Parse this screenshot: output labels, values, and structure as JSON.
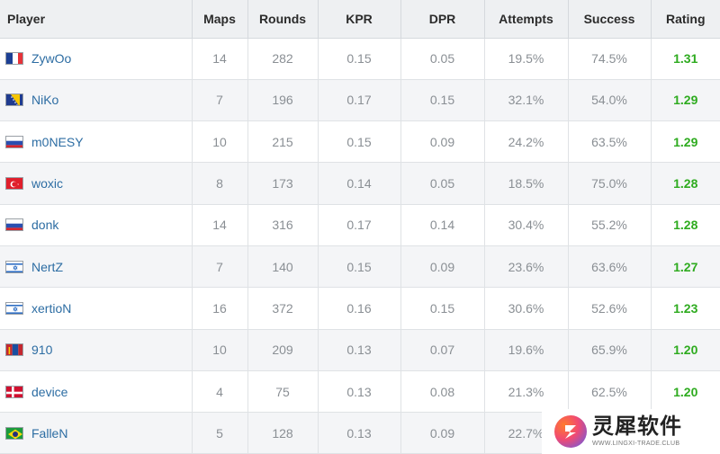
{
  "headers": [
    "Player",
    "Maps",
    "Rounds",
    "KPR",
    "DPR",
    "Attempts",
    "Success",
    "Rating"
  ],
  "rows": [
    {
      "flag": "france",
      "player": "ZywOo",
      "maps": "14",
      "rounds": "282",
      "kpr": "0.15",
      "dpr": "0.05",
      "attempts": "19.5%",
      "success": "74.5%",
      "rating": "1.31"
    },
    {
      "flag": "bosnia",
      "player": "NiKo",
      "maps": "7",
      "rounds": "196",
      "kpr": "0.17",
      "dpr": "0.15",
      "attempts": "32.1%",
      "success": "54.0%",
      "rating": "1.29"
    },
    {
      "flag": "russia",
      "player": "m0NESY",
      "maps": "10",
      "rounds": "215",
      "kpr": "0.15",
      "dpr": "0.09",
      "attempts": "24.2%",
      "success": "63.5%",
      "rating": "1.29"
    },
    {
      "flag": "turkey",
      "player": "woxic",
      "maps": "8",
      "rounds": "173",
      "kpr": "0.14",
      "dpr": "0.05",
      "attempts": "18.5%",
      "success": "75.0%",
      "rating": "1.28"
    },
    {
      "flag": "russia",
      "player": "donk",
      "maps": "14",
      "rounds": "316",
      "kpr": "0.17",
      "dpr": "0.14",
      "attempts": "30.4%",
      "success": "55.2%",
      "rating": "1.28"
    },
    {
      "flag": "israel",
      "player": "NertZ",
      "maps": "7",
      "rounds": "140",
      "kpr": "0.15",
      "dpr": "0.09",
      "attempts": "23.6%",
      "success": "63.6%",
      "rating": "1.27"
    },
    {
      "flag": "israel",
      "player": "xertioN",
      "maps": "16",
      "rounds": "372",
      "kpr": "0.16",
      "dpr": "0.15",
      "attempts": "30.6%",
      "success": "52.6%",
      "rating": "1.23"
    },
    {
      "flag": "mongolia",
      "player": "910",
      "maps": "10",
      "rounds": "209",
      "kpr": "0.13",
      "dpr": "0.07",
      "attempts": "19.6%",
      "success": "65.9%",
      "rating": "1.20"
    },
    {
      "flag": "denmark",
      "player": "device",
      "maps": "4",
      "rounds": "75",
      "kpr": "0.13",
      "dpr": "0.08",
      "attempts": "21.3%",
      "success": "62.5%",
      "rating": "1.20"
    },
    {
      "flag": "brazil",
      "player": "FalleN",
      "maps": "5",
      "rounds": "128",
      "kpr": "0.13",
      "dpr": "0.09",
      "attempts": "22.7%",
      "success": "",
      "rating": ""
    }
  ],
  "colors": {
    "player_link": "#2d6da3",
    "rating_green": "#2eab1f",
    "header_bg": "#eef0f2"
  },
  "watermark": {
    "title": "灵犀软件",
    "subtitle": "WWW.LINGXI-TRADE.CLUB"
  }
}
